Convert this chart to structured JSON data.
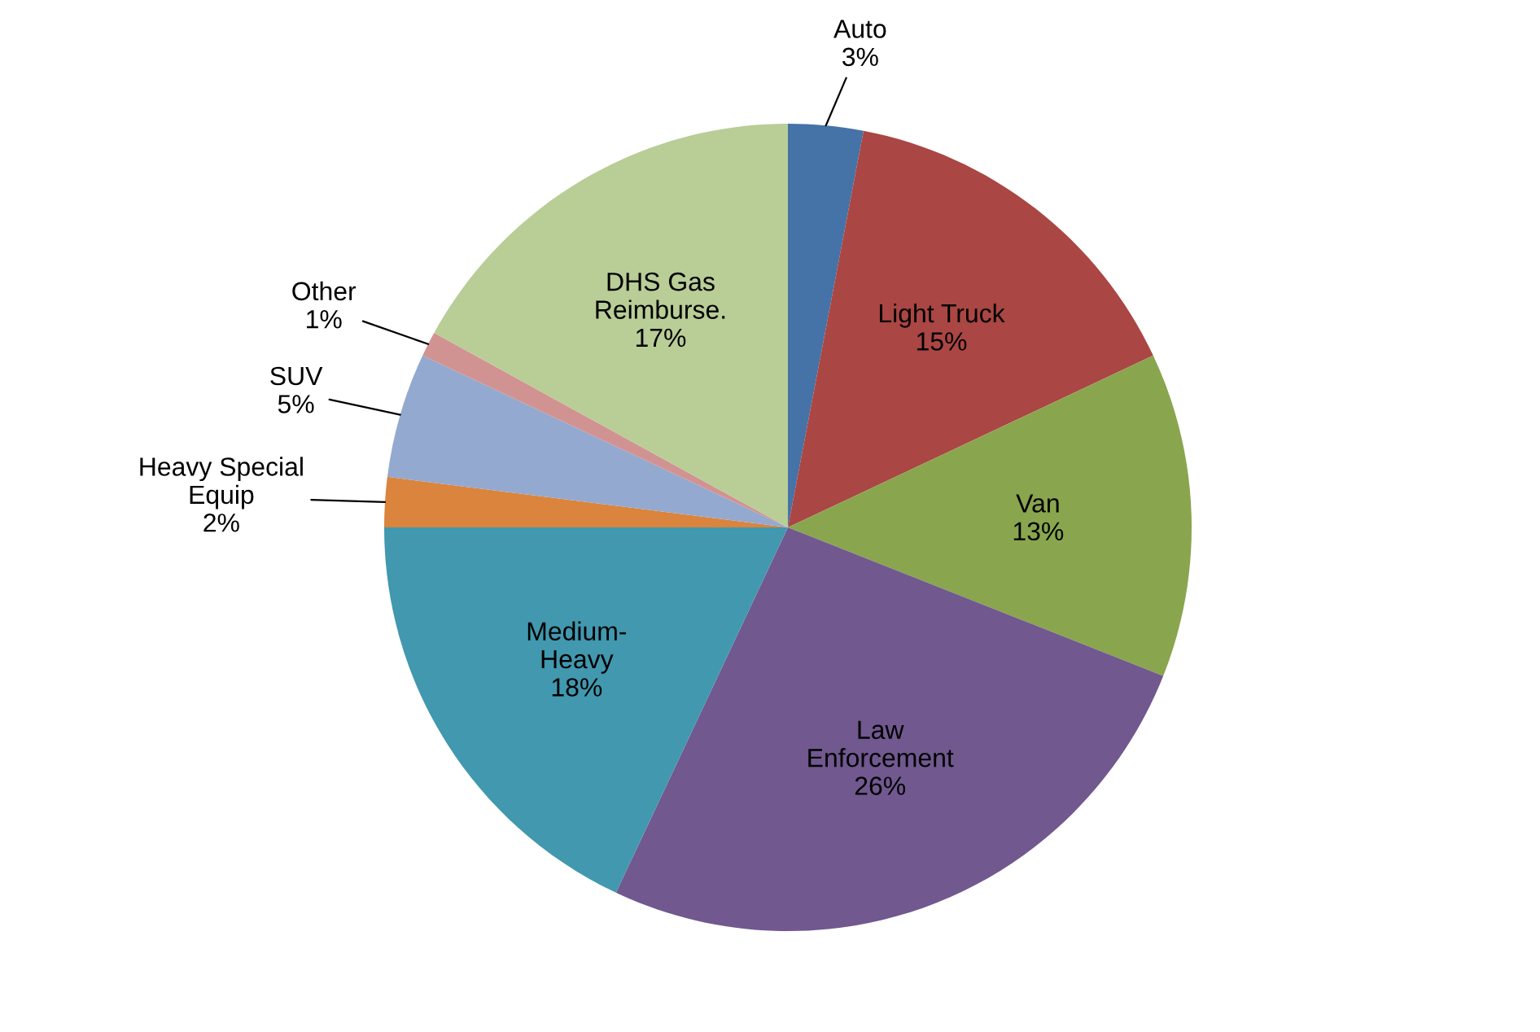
{
  "chart_data": {
    "type": "pie",
    "categories": [
      "Auto",
      "Light Truck",
      "Van",
      "Law\nEnforcement",
      "Medium-\nHeavy",
      "Heavy Special\nEquip",
      "SUV",
      "Other",
      "DHS Gas\nReimburse."
    ],
    "values": [
      3,
      15,
      13,
      26,
      18,
      2,
      5,
      1,
      17
    ],
    "colors": [
      "#4572a7",
      "#aa4643",
      "#89a54e",
      "#71588f",
      "#4198af",
      "#db843d",
      "#93a9cf",
      "#d19392",
      "#b9cd96"
    ],
    "value_labels": [
      "3%",
      "15%",
      "13%",
      "26%",
      "18%",
      "2%",
      "5%",
      "1%",
      "17%"
    ],
    "legend": false
  }
}
